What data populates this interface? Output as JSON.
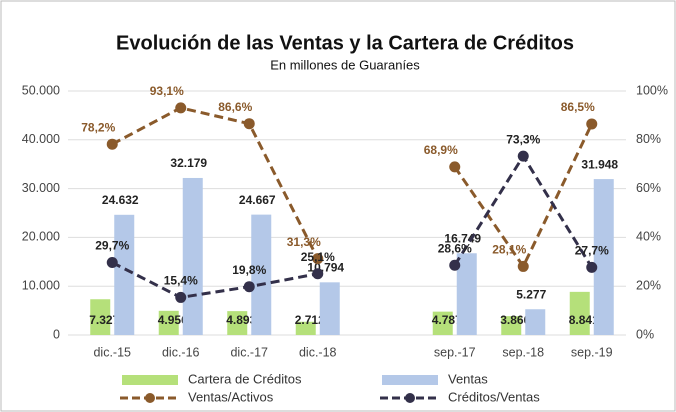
{
  "chart_data": {
    "type": "bar_line",
    "title": "Evolución de las Ventas y la Cartera de Créditos",
    "subtitle": "En millones de Guaraníes",
    "categories": [
      "dic.-15",
      "dic.-16",
      "dic.-17",
      "dic.-18",
      null,
      "sep.-17",
      "sep.-18",
      "sep.-19"
    ],
    "ylim": [
      0,
      50000
    ],
    "yticks": [
      0,
      {
        "value": 10000,
        "label": "10.000"
      },
      {
        "value": 20000,
        "label": "20.000"
      },
      {
        "value": 30000,
        "label": "30.000"
      },
      {
        "value": 40000,
        "label": "40.000"
      },
      {
        "value": 50000,
        "label": "50.000"
      }
    ],
    "y2lim": [
      0,
      100
    ],
    "y2ticks": [
      {
        "value": 0,
        "label": "0%"
      },
      {
        "value": 20,
        "label": "20%"
      },
      {
        "value": 40,
        "label": "40%"
      },
      {
        "value": 60,
        "label": "60%"
      },
      {
        "value": 80,
        "label": "80%"
      },
      {
        "value": 100,
        "label": "100%"
      }
    ],
    "grid": true,
    "legend": "bottom",
    "series": [
      {
        "name": "Cartera de Créditos",
        "kind": "bar",
        "color": "#b5e07a",
        "values": [
          7327,
          4956,
          4893,
          2712,
          null,
          4787,
          3866,
          8841
        ],
        "value_labels": [
          "7.327",
          "4.956",
          "4.893",
          "2.712",
          null,
          "4.787",
          "3.866",
          "8.841"
        ]
      },
      {
        "name": "Ventas",
        "kind": "bar",
        "color": "#b4c8e8",
        "values": [
          24632,
          32179,
          24667,
          10794,
          null,
          16749,
          5277,
          31948
        ],
        "value_labels": [
          "24.632",
          "32.179",
          "24.667",
          "10.794",
          null,
          "16.749",
          "5.277",
          "31.948"
        ]
      },
      {
        "name": "Ventas/Activos",
        "kind": "line",
        "axis": "y2",
        "color": "#8a5a2b",
        "values": [
          78.2,
          93.1,
          86.6,
          31.3,
          null,
          68.9,
          28.1,
          86.5
        ],
        "value_labels": [
          "78,2%",
          "93,1%",
          "86,6%",
          "31,3%",
          null,
          "68,9%",
          "28,1%",
          "86,5%"
        ]
      },
      {
        "name": "Créditos/Ventas",
        "kind": "line",
        "axis": "y2",
        "color": "#33304a",
        "values": [
          29.7,
          15.4,
          19.8,
          25.1,
          null,
          28.6,
          73.3,
          27.7
        ],
        "value_labels": [
          "29,7%",
          "15,4%",
          "19,8%",
          "25,1%",
          null,
          "28,6%",
          "73,3%",
          "27,7%"
        ]
      }
    ]
  }
}
